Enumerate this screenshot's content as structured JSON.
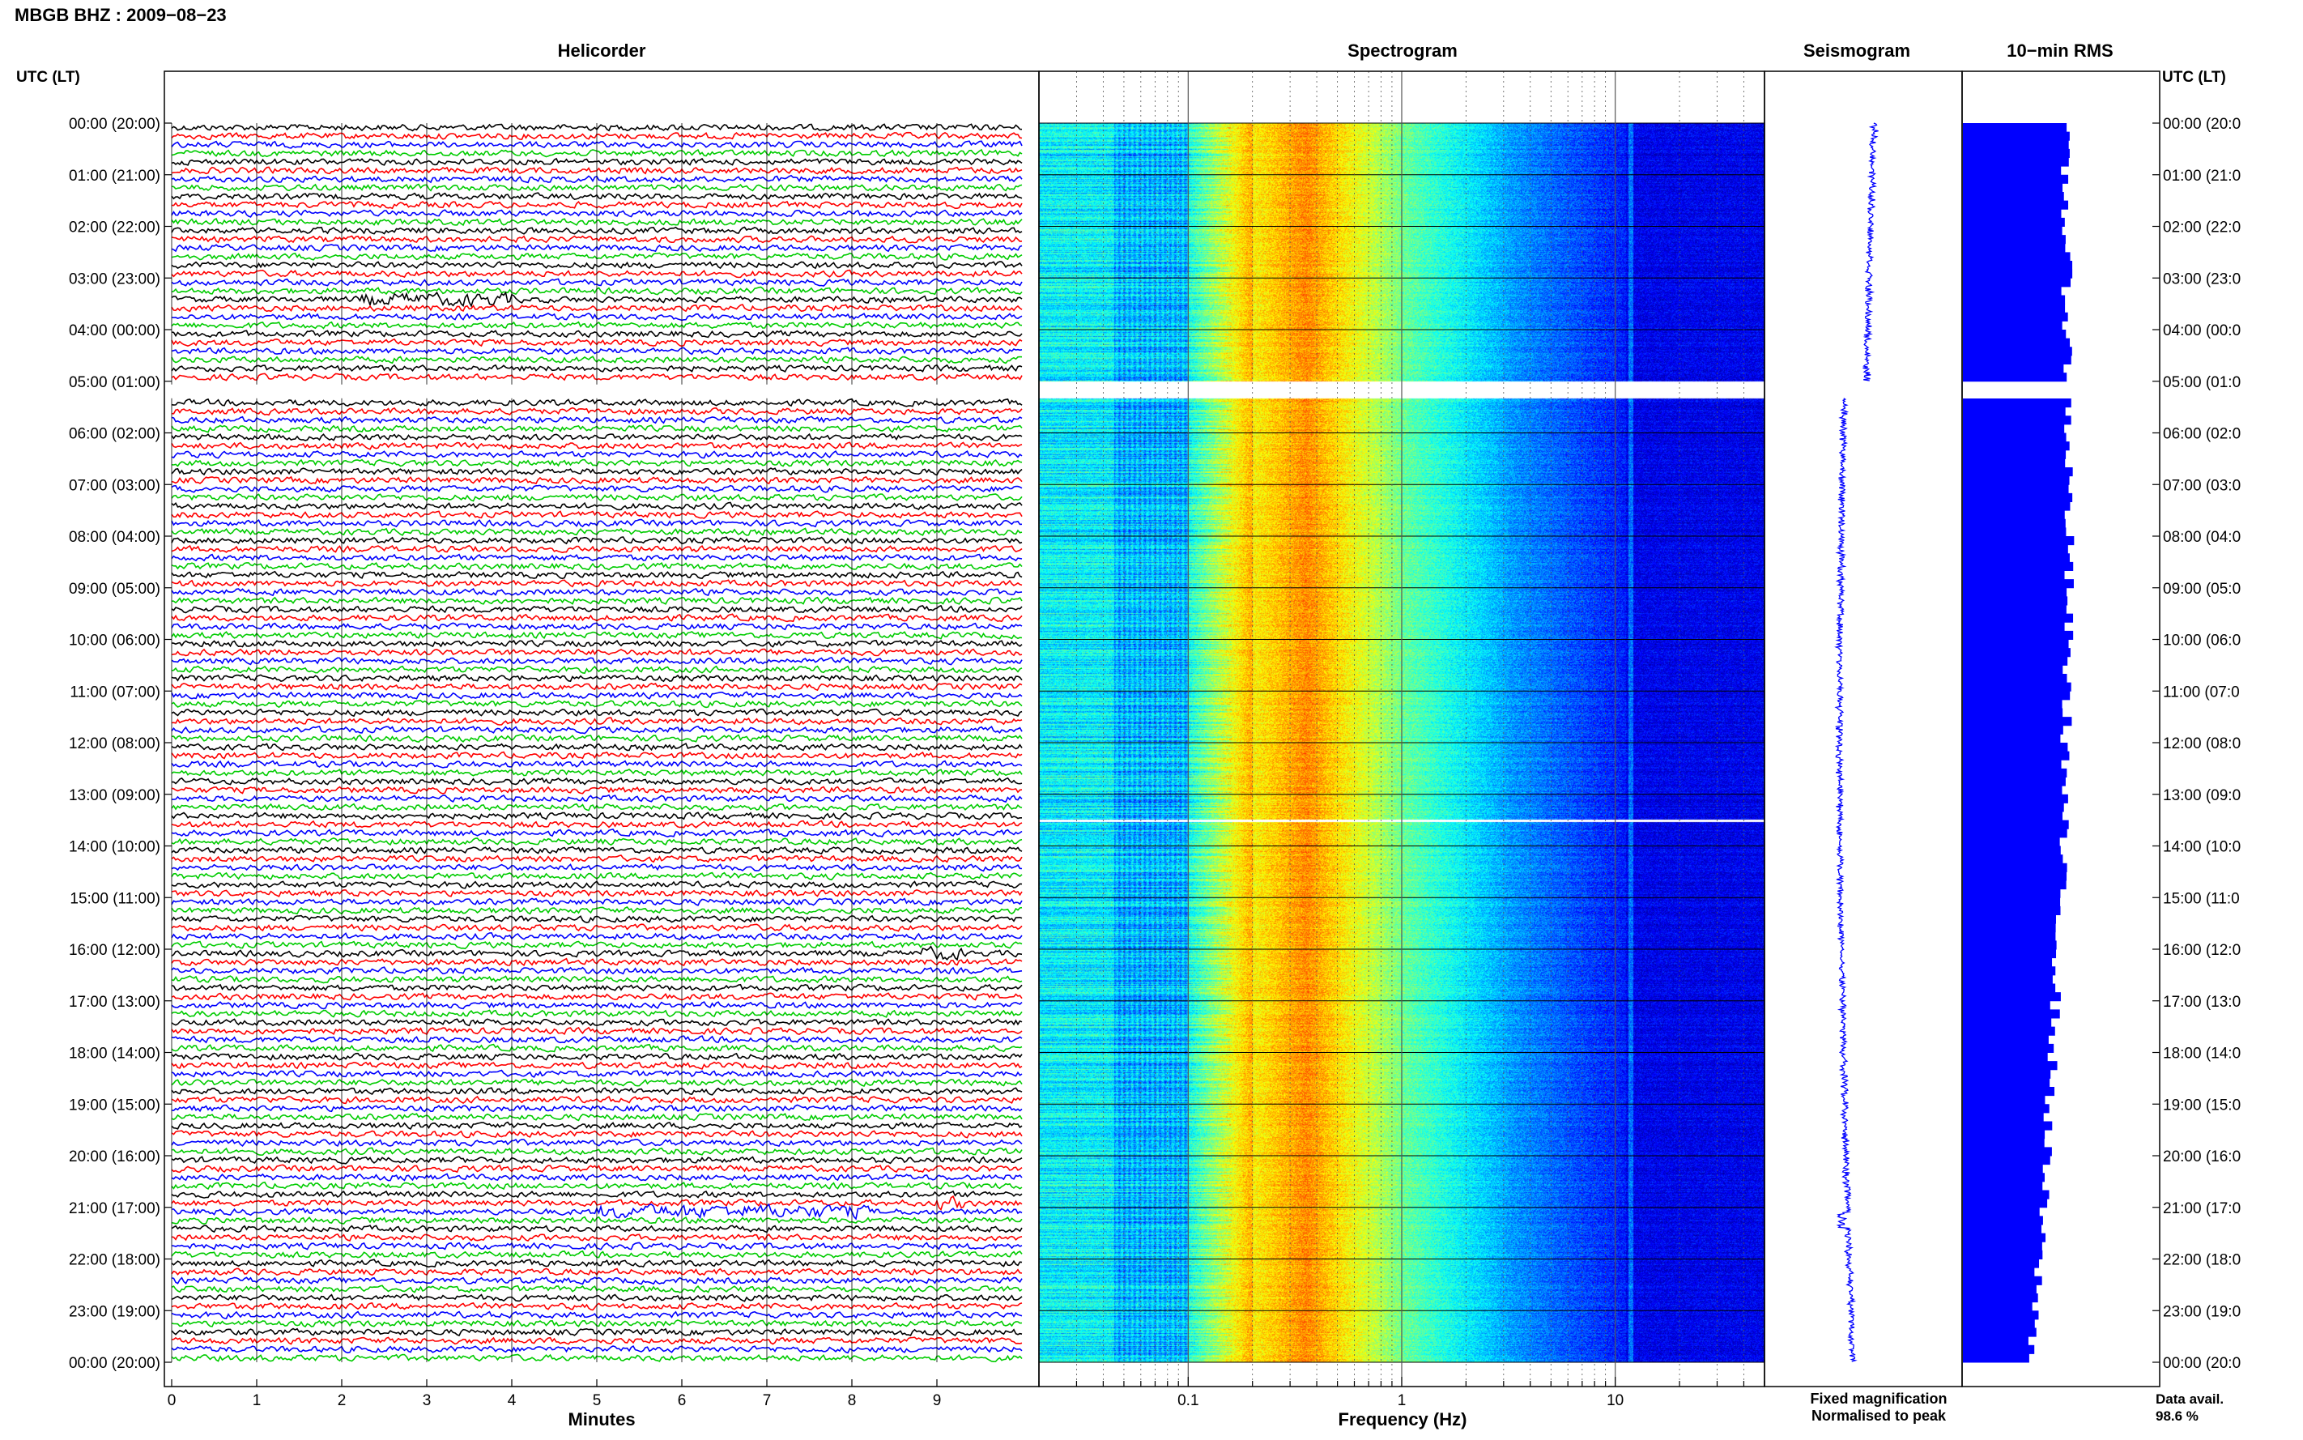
{
  "header": {
    "station_title": "MBGB BHZ : 2009−08−23",
    "utc_lt_label": "UTC (LT)"
  },
  "chart_data": [
    {
      "type": "line",
      "title": "Helicorder",
      "xlabel": "Minutes",
      "xlim": [
        0,
        10
      ],
      "xticks": [
        0,
        1,
        2,
        3,
        4,
        5,
        6,
        7,
        8,
        9
      ],
      "trace_colors": [
        "#000000",
        "#ff0000",
        "#0000ff",
        "#00cc00"
      ],
      "traces_per_hour": 6,
      "events": [
        {
          "hour": 3,
          "trace": 2,
          "minute_start": 2.2,
          "minute_end": 4.0
        },
        {
          "hour": 16,
          "trace": 0,
          "minute_start": 8.8,
          "minute_end": 9.3
        },
        {
          "hour": 20,
          "trace": 5,
          "minute_start": 9.0,
          "minute_end": 9.3
        },
        {
          "hour": 21,
          "trace": 0,
          "minute_start": 5.0,
          "minute_end": 8.2
        }
      ]
    },
    {
      "type": "heatmap",
      "title": "Spectrogram",
      "xlabel": "Frequency (Hz)",
      "xscale": "log",
      "xlim": [
        0.02,
        50
      ],
      "xticks": [
        0.1,
        1,
        10
      ],
      "xtick_labels": [
        "0.1",
        "1",
        "10"
      ],
      "colormap": [
        "#00008f",
        "#0000ff",
        "#0080ff",
        "#00ffff",
        "#80ff80",
        "#ffff00",
        "#ff8000",
        "#ff0000"
      ]
    },
    {
      "type": "line",
      "title": "Seismogram"
    },
    {
      "type": "bar",
      "title": "10−min RMS",
      "bar_color": "#0000ff"
    }
  ],
  "time_axis": {
    "left_labels": [
      "00:00 (20:00)",
      "01:00 (21:00)",
      "02:00 (22:00)",
      "03:00 (23:00)",
      "04:00 (00:00)",
      "05:00 (01:00)",
      "06:00 (02:00)",
      "07:00 (03:00)",
      "08:00 (04:00)",
      "09:00 (05:00)",
      "10:00 (06:00)",
      "11:00 (07:00)",
      "12:00 (08:00)",
      "13:00 (09:00)",
      "14:00 (10:00)",
      "15:00 (11:00)",
      "16:00 (12:00)",
      "17:00 (13:00)",
      "18:00 (14:00)",
      "19:00 (15:00)",
      "20:00 (16:00)",
      "21:00 (17:00)",
      "22:00 (18:00)",
      "23:00 (19:00)",
      "00:00 (20:00)"
    ],
    "right_labels": [
      "00:00 (20:0",
      "01:00 (21:0",
      "02:00 (22:0",
      "03:00 (23:0",
      "04:00 (00:0",
      "05:00 (01:0",
      "06:00 (02:0",
      "07:00 (03:0",
      "08:00 (04:0",
      "09:00 (05:0",
      "10:00 (06:0",
      "11:00 (07:0",
      "12:00 (08:0",
      "13:00 (09:0",
      "14:00 (10:0",
      "15:00 (11:0",
      "16:00 (12:0",
      "17:00 (13:0",
      "18:00 (14:0",
      "19:00 (15:0",
      "20:00 (16:0",
      "21:00 (17:0",
      "22:00 (18:0",
      "23:00 (19:0",
      "00:00 (20:0"
    ],
    "data_gap_hours": [
      5.0,
      5.33
    ],
    "missing_line_hour": 13.5
  },
  "legend": {
    "fixed_magnification": "Fixed magnification",
    "fixed_color": "#0000ff",
    "normalised_to_peak": "Normalised to peak",
    "normalised_color": "#ff0000"
  },
  "data_avail": {
    "label": "Data avail.",
    "value": "98.6 %"
  }
}
